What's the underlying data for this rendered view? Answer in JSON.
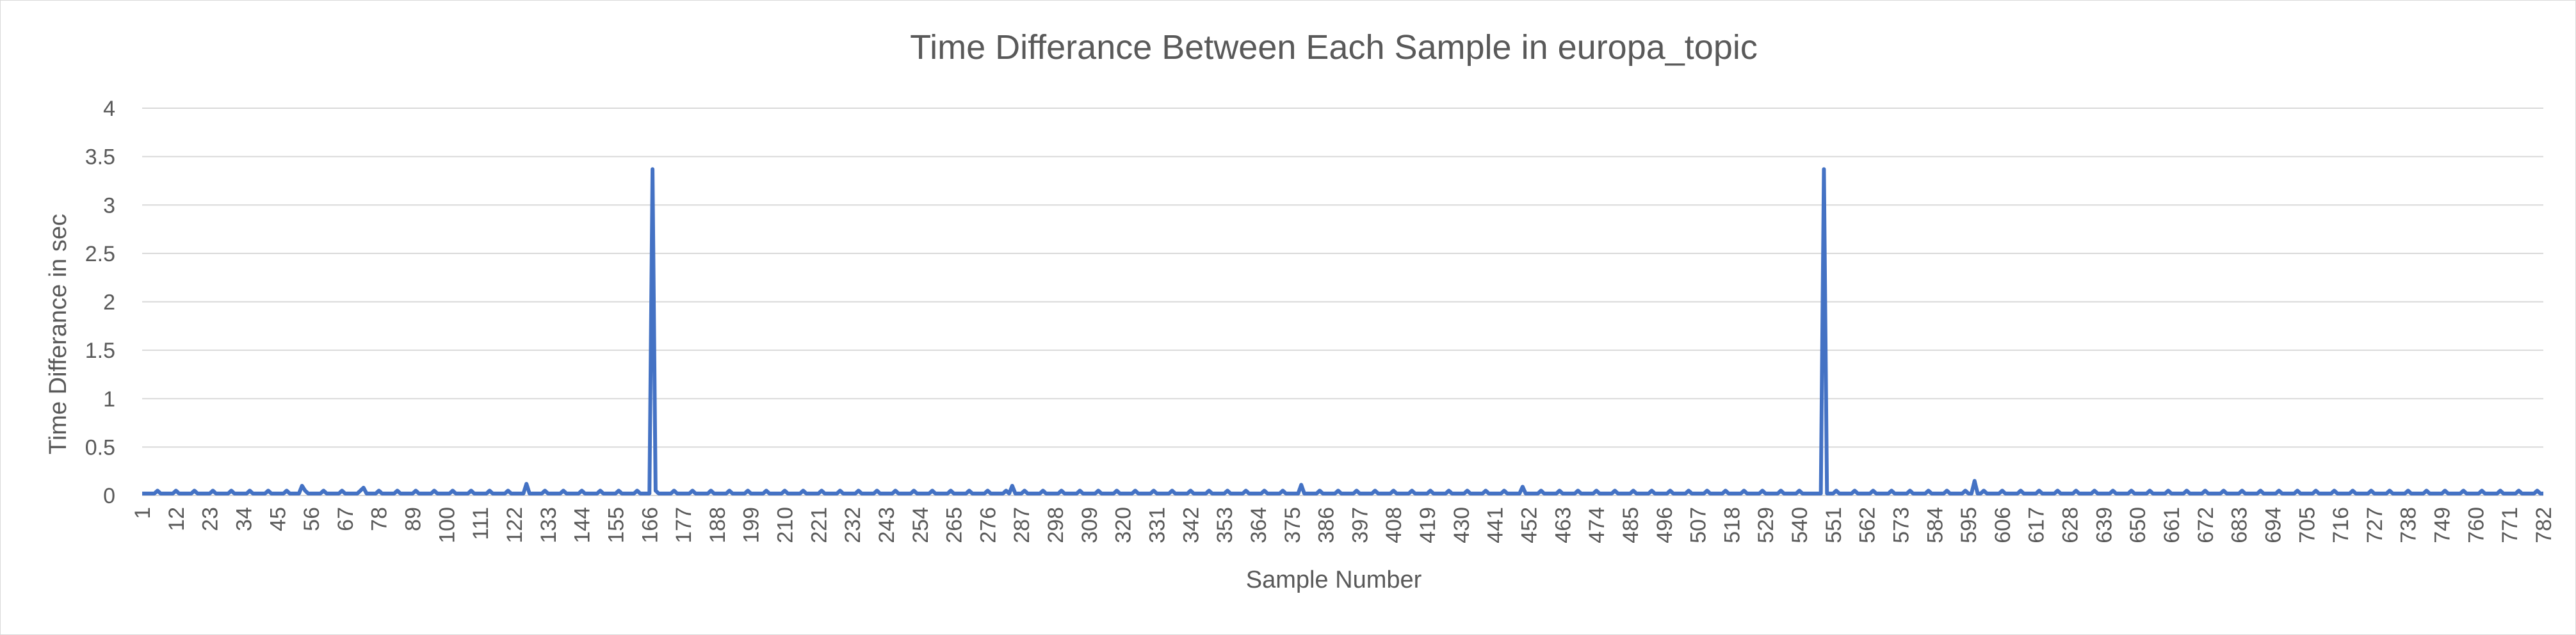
{
  "chart_data": {
    "type": "line",
    "title": "Time Differance Between Each Sample in europa_topic",
    "xlabel": "Sample Number",
    "ylabel": "Time Differance in sec",
    "ylim": [
      0,
      4
    ],
    "yticks": [
      "0",
      "0.5",
      "1",
      "1.5",
      "2",
      "2.5",
      "3",
      "3.5",
      "4"
    ],
    "grid": true,
    "legend": "none",
    "series_color": "#4472c4",
    "x_range": [
      1,
      782
    ],
    "x_tick_labels": [
      "1",
      "12",
      "23",
      "34",
      "45",
      "56",
      "67",
      "78",
      "89",
      "100",
      "111",
      "122",
      "133",
      "144",
      "155",
      "166",
      "177",
      "188",
      "199",
      "210",
      "221",
      "232",
      "243",
      "254",
      "265",
      "276",
      "287",
      "298",
      "309",
      "320",
      "331",
      "342",
      "353",
      "364",
      "375",
      "386",
      "397",
      "408",
      "419",
      "430",
      "441",
      "452",
      "463",
      "474",
      "485",
      "496",
      "507",
      "518",
      "529",
      "540",
      "551",
      "562",
      "573",
      "584",
      "595",
      "606",
      "617",
      "628",
      "639",
      "650",
      "661",
      "672",
      "683",
      "694",
      "705",
      "716",
      "727",
      "738",
      "749",
      "760",
      "771",
      "782"
    ],
    "baseline_value": 0.02,
    "baseline_peak_value": 0.05,
    "baseline_peak_every": 6,
    "points": [
      {
        "x": 1,
        "y": 0.02
      },
      {
        "x": 53,
        "y": 0.1
      },
      {
        "x": 73,
        "y": 0.08
      },
      {
        "x": 126,
        "y": 0.12
      },
      {
        "x": 165,
        "y": 0.02
      },
      {
        "x": 167,
        "y": 3.37
      },
      {
        "x": 169,
        "y": 0.02
      },
      {
        "x": 284,
        "y": 0.1
      },
      {
        "x": 378,
        "y": 0.11
      },
      {
        "x": 450,
        "y": 0.09
      },
      {
        "x": 546,
        "y": 0.02
      },
      {
        "x": 548,
        "y": 3.37
      },
      {
        "x": 550,
        "y": 0.02
      },
      {
        "x": 597,
        "y": 0.15
      },
      {
        "x": 782,
        "y": 0.02
      }
    ]
  }
}
